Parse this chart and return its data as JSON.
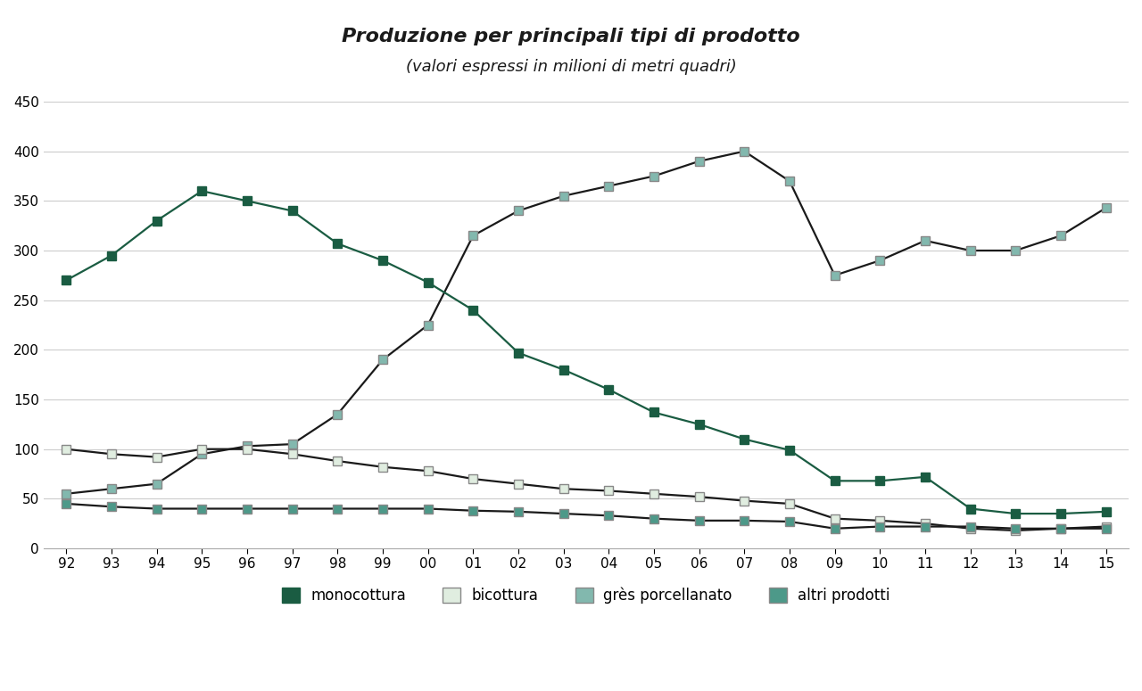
{
  "title_line1": "Produzione per principali tipi di prodotto",
  "title_line2": "(valori espressi in milioni di metri quadri)",
  "years": [
    "92",
    "93",
    "94",
    "95",
    "96",
    "97",
    "98",
    "99",
    "00",
    "01",
    "02",
    "03",
    "04",
    "05",
    "06",
    "07",
    "08",
    "09",
    "10",
    "11",
    "12",
    "13",
    "14",
    "15"
  ],
  "monocottura": [
    270,
    295,
    330,
    360,
    350,
    340,
    307,
    290,
    268,
    240,
    197,
    180,
    160,
    137,
    125,
    110,
    99,
    68,
    68,
    72,
    40,
    35,
    35,
    37
  ],
  "bicottura": [
    100,
    95,
    92,
    100,
    100,
    95,
    88,
    82,
    78,
    70,
    65,
    60,
    58,
    55,
    52,
    48,
    45,
    30,
    28,
    25,
    20,
    18,
    20,
    22
  ],
  "gres_porcellanato": [
    55,
    60,
    65,
    95,
    103,
    105,
    135,
    190,
    225,
    315,
    340,
    355,
    365,
    375,
    390,
    400,
    370,
    275,
    290,
    310,
    300,
    300,
    315,
    343
  ],
  "altri_prodotti": [
    45,
    42,
    40,
    40,
    40,
    40,
    40,
    40,
    40,
    38,
    37,
    35,
    33,
    30,
    28,
    28,
    27,
    20,
    22,
    22,
    22,
    20,
    20,
    20
  ],
  "color_monocottura": "#1a5c42",
  "color_bicottura": "#e0ede0",
  "color_gres": "#82b8ae",
  "color_altri": "#4d9989",
  "line_dark": "#1a1a1a",
  "background": "#ffffff",
  "ylim": [
    0,
    450
  ],
  "yticks": [
    0,
    50,
    100,
    150,
    200,
    250,
    300,
    350,
    400,
    450
  ],
  "grid_color": "#cccccc",
  "title_fontsize": 16,
  "subtitle_fontsize": 13,
  "tick_fontsize": 11,
  "legend_fontsize": 12
}
